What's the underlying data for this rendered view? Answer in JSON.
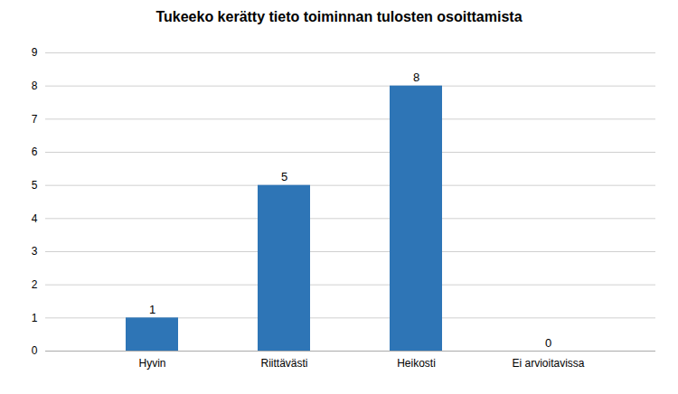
{
  "chart_data": {
    "type": "bar",
    "title": "Tukeeko kerätty tieto toiminnan tulosten osoittamista",
    "categories": [
      "Hyvin",
      "Riittävästi",
      "Heikosti",
      "Ei arvioitavissa"
    ],
    "values": [
      1,
      5,
      8,
      0
    ],
    "color": "#2E75B6",
    "ylim": [
      0,
      9
    ],
    "yticks": [
      0,
      1,
      2,
      3,
      4,
      5,
      6,
      7,
      8,
      9
    ],
    "grid": true,
    "data_labels": true
  }
}
